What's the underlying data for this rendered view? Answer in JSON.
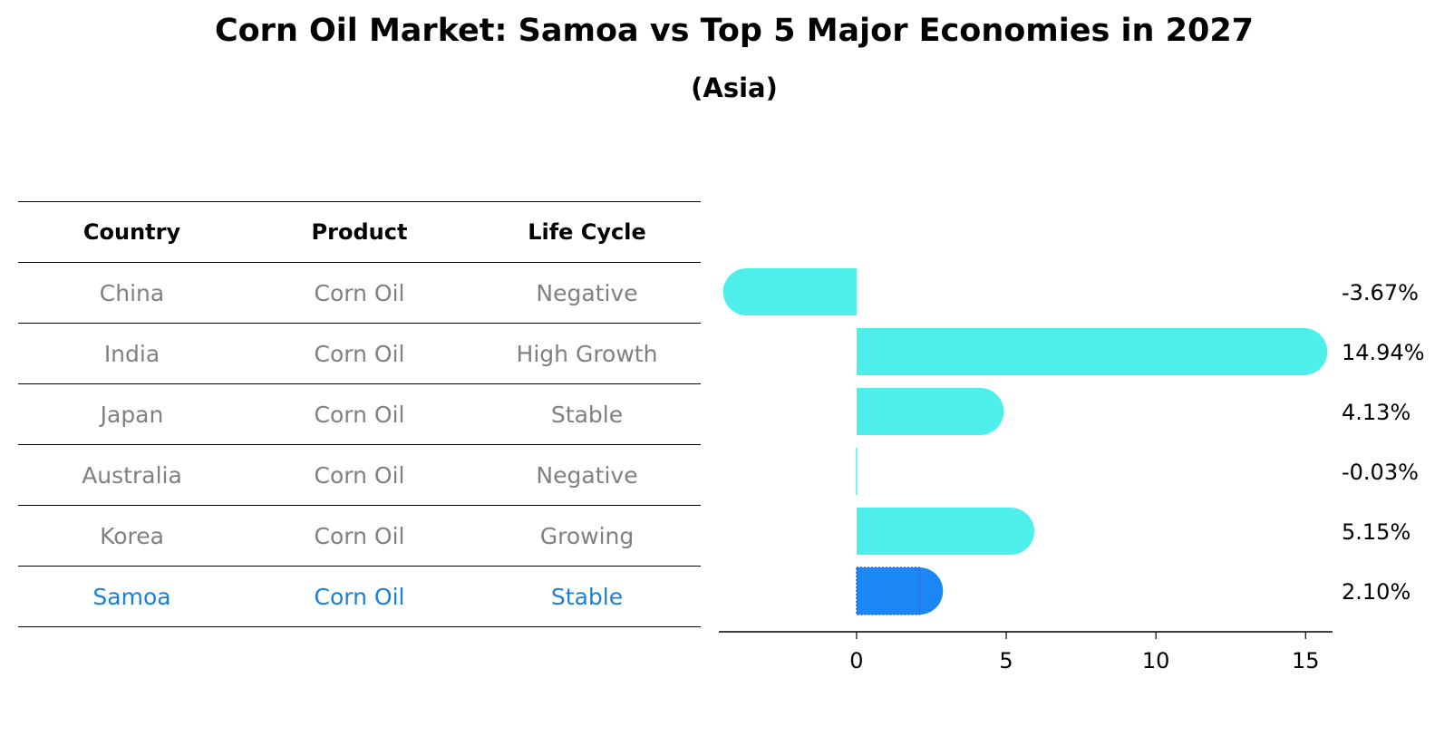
{
  "chart_data": {
    "type": "bar",
    "orientation": "horizontal",
    "title": "Corn Oil Market: Samoa vs Top 5 Major Economies in 2027",
    "subtitle": "(Asia)",
    "table": {
      "headers": [
        "Country",
        "Product",
        "Life Cycle"
      ],
      "rows": [
        {
          "country": "China",
          "product": "Corn Oil",
          "life_cycle": "Negative"
        },
        {
          "country": "India",
          "product": "Corn Oil",
          "life_cycle": "High Growth"
        },
        {
          "country": "Japan",
          "product": "Corn Oil",
          "life_cycle": "Stable"
        },
        {
          "country": "Australia",
          "product": "Corn Oil",
          "life_cycle": "Negative"
        },
        {
          "country": "Korea",
          "product": "Corn Oil",
          "life_cycle": "Growing"
        },
        {
          "country": "Samoa",
          "product": "Corn Oil",
          "life_cycle": "Stable"
        }
      ],
      "highlight": "Samoa"
    },
    "categories": [
      "China",
      "India",
      "Japan",
      "Australia",
      "Korea",
      "Samoa"
    ],
    "values": [
      -3.67,
      14.94,
      4.13,
      -0.03,
      5.15,
      2.1
    ],
    "value_labels": [
      "-3.67%",
      "14.94%",
      "4.13%",
      "-0.03%",
      "5.15%",
      "2.10%"
    ],
    "xlim": [
      -4.6,
      15.9
    ],
    "xticks": [
      0,
      5,
      10,
      15
    ],
    "grid": false,
    "colors": {
      "bar": "#4eeeea",
      "highlight_bar": "#1a87f5",
      "highlight_text": "#1a80d9",
      "muted_text": "#808080"
    }
  }
}
